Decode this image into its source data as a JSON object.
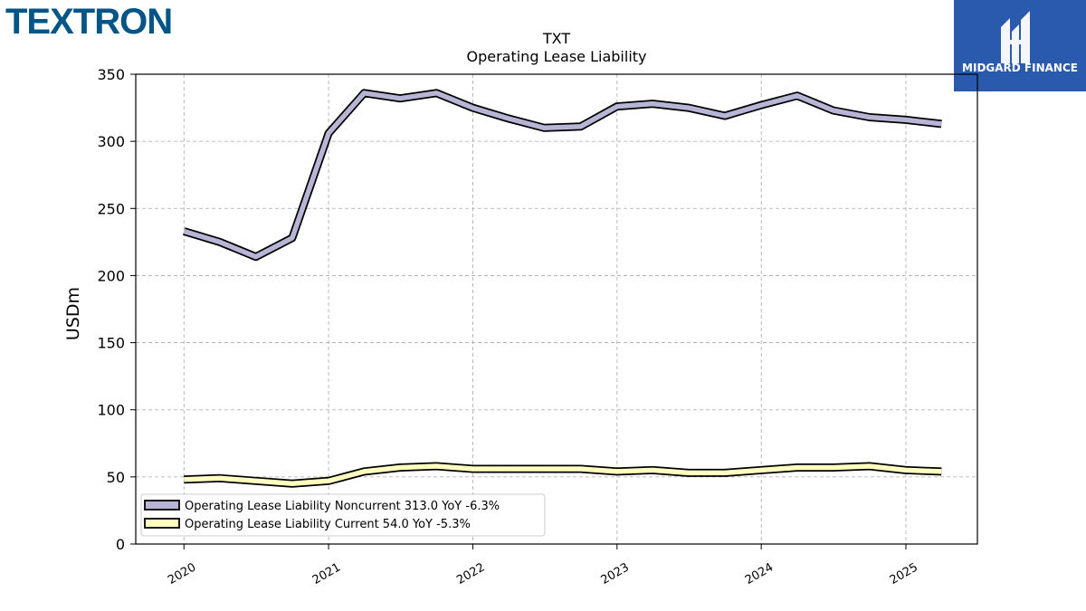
{
  "colors": {
    "company_logo": "#005587",
    "badge_bg": "#2a5aad",
    "noncurrent_fill": "#b8b4d6",
    "current_fill": "#ffffc0",
    "outline": "#000000",
    "grid": "#aaaaaa"
  },
  "company_logo": "TEXTRON",
  "brand": {
    "name": "MIDGARD FINANCE",
    "icon": "midgard-logo-icon"
  },
  "chart_data": {
    "type": "line",
    "title": "TXT",
    "subtitle": "Operating Lease Liability",
    "ylabel": "USDm",
    "xlabel": "",
    "ylim": [
      0,
      350
    ],
    "y_ticks": [
      0,
      50,
      100,
      150,
      200,
      250,
      300,
      350
    ],
    "xlim": [
      "2019-09-01",
      "2025-07-01"
    ],
    "x_ticks": [
      "2020",
      "2021",
      "2022",
      "2023",
      "2024",
      "2025"
    ],
    "grid": true,
    "legend_position": "lower-left",
    "x": [
      "2020-01-01",
      "2020-04-01",
      "2020-07-01",
      "2020-10-01",
      "2021-01-01",
      "2021-04-01",
      "2021-07-01",
      "2021-10-01",
      "2022-01-01",
      "2022-04-01",
      "2022-07-01",
      "2022-10-01",
      "2023-01-01",
      "2023-04-01",
      "2023-07-01",
      "2023-10-01",
      "2024-01-01",
      "2024-04-01",
      "2024-07-01",
      "2024-10-01",
      "2025-01-01",
      "2025-04-01"
    ],
    "series": [
      {
        "name": "Operating Lease Liability Noncurrent",
        "legend_label": "Operating Lease Liability Noncurrent  313.0 YoY -6.3%",
        "color": "#b8b4d6",
        "values": [
          233,
          225,
          214,
          228,
          306,
          336,
          332,
          336,
          325,
          317,
          310,
          311,
          326,
          328,
          325,
          319,
          327,
          334,
          323,
          318,
          316,
          313
        ]
      },
      {
        "name": "Operating Lease Liability Current",
        "legend_label": "Operating Lease Liability Current  54.0 YoY -5.3%",
        "color": "#ffffc0",
        "values": [
          48,
          49,
          47,
          45,
          47,
          54,
          57,
          58,
          56,
          56,
          56,
          56,
          54,
          55,
          53,
          53,
          55,
          57,
          57,
          58,
          55,
          54
        ]
      }
    ]
  }
}
